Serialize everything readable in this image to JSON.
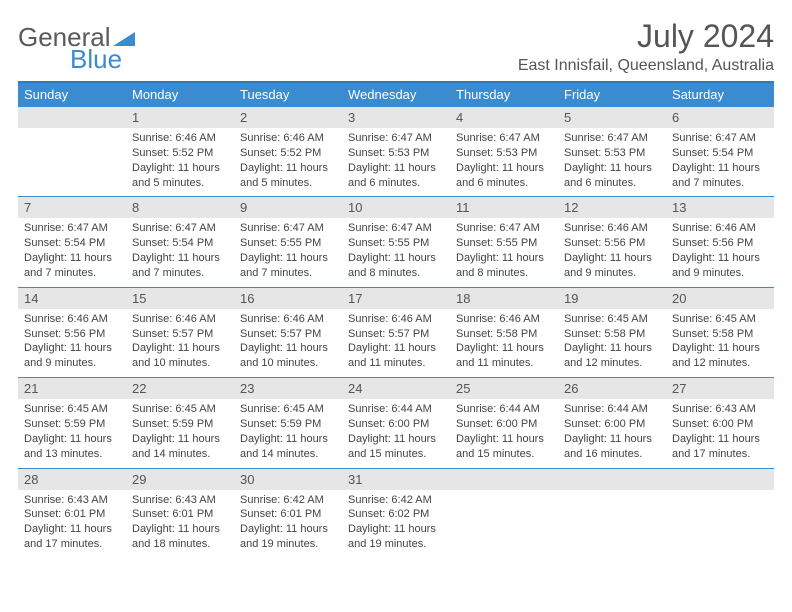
{
  "brand": {
    "word1": "General",
    "word2": "Blue",
    "triangle_color": "#3b8bd0"
  },
  "title": "July 2024",
  "location": "East Innisfail, Queensland, Australia",
  "colors": {
    "header_bg": "#3b8bd0",
    "header_border_top": "#2f7ab6",
    "daynum_bg": "#e6e6e6",
    "row_divider": "#3b8bd0",
    "text": "#444444"
  },
  "day_labels": [
    "Sunday",
    "Monday",
    "Tuesday",
    "Wednesday",
    "Thursday",
    "Friday",
    "Saturday"
  ],
  "weeks": [
    [
      {
        "n": "",
        "lines": []
      },
      {
        "n": "1",
        "lines": [
          "Sunrise: 6:46 AM",
          "Sunset: 5:52 PM",
          "Daylight: 11 hours and 5 minutes."
        ]
      },
      {
        "n": "2",
        "lines": [
          "Sunrise: 6:46 AM",
          "Sunset: 5:52 PM",
          "Daylight: 11 hours and 5 minutes."
        ]
      },
      {
        "n": "3",
        "lines": [
          "Sunrise: 6:47 AM",
          "Sunset: 5:53 PM",
          "Daylight: 11 hours and 6 minutes."
        ]
      },
      {
        "n": "4",
        "lines": [
          "Sunrise: 6:47 AM",
          "Sunset: 5:53 PM",
          "Daylight: 11 hours and 6 minutes."
        ]
      },
      {
        "n": "5",
        "lines": [
          "Sunrise: 6:47 AM",
          "Sunset: 5:53 PM",
          "Daylight: 11 hours and 6 minutes."
        ]
      },
      {
        "n": "6",
        "lines": [
          "Sunrise: 6:47 AM",
          "Sunset: 5:54 PM",
          "Daylight: 11 hours and 7 minutes."
        ]
      }
    ],
    [
      {
        "n": "7",
        "lines": [
          "Sunrise: 6:47 AM",
          "Sunset: 5:54 PM",
          "Daylight: 11 hours and 7 minutes."
        ]
      },
      {
        "n": "8",
        "lines": [
          "Sunrise: 6:47 AM",
          "Sunset: 5:54 PM",
          "Daylight: 11 hours and 7 minutes."
        ]
      },
      {
        "n": "9",
        "lines": [
          "Sunrise: 6:47 AM",
          "Sunset: 5:55 PM",
          "Daylight: 11 hours and 7 minutes."
        ]
      },
      {
        "n": "10",
        "lines": [
          "Sunrise: 6:47 AM",
          "Sunset: 5:55 PM",
          "Daylight: 11 hours and 8 minutes."
        ]
      },
      {
        "n": "11",
        "lines": [
          "Sunrise: 6:47 AM",
          "Sunset: 5:55 PM",
          "Daylight: 11 hours and 8 minutes."
        ]
      },
      {
        "n": "12",
        "lines": [
          "Sunrise: 6:46 AM",
          "Sunset: 5:56 PM",
          "Daylight: 11 hours and 9 minutes."
        ]
      },
      {
        "n": "13",
        "lines": [
          "Sunrise: 6:46 AM",
          "Sunset: 5:56 PM",
          "Daylight: 11 hours and 9 minutes."
        ]
      }
    ],
    [
      {
        "n": "14",
        "lines": [
          "Sunrise: 6:46 AM",
          "Sunset: 5:56 PM",
          "Daylight: 11 hours and 9 minutes."
        ]
      },
      {
        "n": "15",
        "lines": [
          "Sunrise: 6:46 AM",
          "Sunset: 5:57 PM",
          "Daylight: 11 hours and 10 minutes."
        ]
      },
      {
        "n": "16",
        "lines": [
          "Sunrise: 6:46 AM",
          "Sunset: 5:57 PM",
          "Daylight: 11 hours and 10 minutes."
        ]
      },
      {
        "n": "17",
        "lines": [
          "Sunrise: 6:46 AM",
          "Sunset: 5:57 PM",
          "Daylight: 11 hours and 11 minutes."
        ]
      },
      {
        "n": "18",
        "lines": [
          "Sunrise: 6:46 AM",
          "Sunset: 5:58 PM",
          "Daylight: 11 hours and 11 minutes."
        ]
      },
      {
        "n": "19",
        "lines": [
          "Sunrise: 6:45 AM",
          "Sunset: 5:58 PM",
          "Daylight: 11 hours and 12 minutes."
        ]
      },
      {
        "n": "20",
        "lines": [
          "Sunrise: 6:45 AM",
          "Sunset: 5:58 PM",
          "Daylight: 11 hours and 12 minutes."
        ]
      }
    ],
    [
      {
        "n": "21",
        "lines": [
          "Sunrise: 6:45 AM",
          "Sunset: 5:59 PM",
          "Daylight: 11 hours and 13 minutes."
        ]
      },
      {
        "n": "22",
        "lines": [
          "Sunrise: 6:45 AM",
          "Sunset: 5:59 PM",
          "Daylight: 11 hours and 14 minutes."
        ]
      },
      {
        "n": "23",
        "lines": [
          "Sunrise: 6:45 AM",
          "Sunset: 5:59 PM",
          "Daylight: 11 hours and 14 minutes."
        ]
      },
      {
        "n": "24",
        "lines": [
          "Sunrise: 6:44 AM",
          "Sunset: 6:00 PM",
          "Daylight: 11 hours and 15 minutes."
        ]
      },
      {
        "n": "25",
        "lines": [
          "Sunrise: 6:44 AM",
          "Sunset: 6:00 PM",
          "Daylight: 11 hours and 15 minutes."
        ]
      },
      {
        "n": "26",
        "lines": [
          "Sunrise: 6:44 AM",
          "Sunset: 6:00 PM",
          "Daylight: 11 hours and 16 minutes."
        ]
      },
      {
        "n": "27",
        "lines": [
          "Sunrise: 6:43 AM",
          "Sunset: 6:00 PM",
          "Daylight: 11 hours and 17 minutes."
        ]
      }
    ],
    [
      {
        "n": "28",
        "lines": [
          "Sunrise: 6:43 AM",
          "Sunset: 6:01 PM",
          "Daylight: 11 hours and 17 minutes."
        ]
      },
      {
        "n": "29",
        "lines": [
          "Sunrise: 6:43 AM",
          "Sunset: 6:01 PM",
          "Daylight: 11 hours and 18 minutes."
        ]
      },
      {
        "n": "30",
        "lines": [
          "Sunrise: 6:42 AM",
          "Sunset: 6:01 PM",
          "Daylight: 11 hours and 19 minutes."
        ]
      },
      {
        "n": "31",
        "lines": [
          "Sunrise: 6:42 AM",
          "Sunset: 6:02 PM",
          "Daylight: 11 hours and 19 minutes."
        ]
      },
      {
        "n": "",
        "lines": []
      },
      {
        "n": "",
        "lines": []
      },
      {
        "n": "",
        "lines": []
      }
    ]
  ]
}
